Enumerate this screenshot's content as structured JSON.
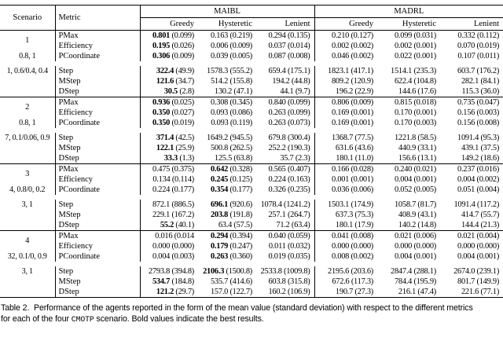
{
  "table": {
    "col_headers": {
      "scenario": "Scenario",
      "metric": "Metric",
      "group1": "MAIBL",
      "group2": "MADRL",
      "subcols": [
        "Greedy",
        "Hysteretic",
        "Lenient"
      ]
    },
    "scenarios": [
      {
        "id": "1",
        "params1": "0.8, 1",
        "params2": "1, 0.6/0.4, 0.4",
        "rows": [
          {
            "metric": "PMax",
            "cells": [
              [
                "0.801",
                "(0.099)",
                1
              ],
              [
                "0.163",
                "(0.219)",
                0
              ],
              [
                "0.294",
                "(0.135)",
                0
              ],
              [
                "0.210",
                "(0.127)",
                0
              ],
              [
                "0.099",
                "(0.031)",
                0
              ],
              [
                "0.332",
                "(0.112)",
                0
              ]
            ]
          },
          {
            "metric": "Efficiency",
            "cells": [
              [
                "0.195",
                "(0.026)",
                1
              ],
              [
                "0.006",
                "(0.009)",
                0
              ],
              [
                "0.037",
                "(0.014)",
                0
              ],
              [
                "0.002",
                "(0.002)",
                0
              ],
              [
                "0.002",
                "(0.001)",
                0
              ],
              [
                "0.070",
                "(0.019)",
                0
              ]
            ]
          },
          {
            "metric": "PCoordinate",
            "cells": [
              [
                "0.306",
                "(0.009)",
                1
              ],
              [
                "0.039",
                "(0.005)",
                0
              ],
              [
                "0.087",
                "(0.008)",
                0
              ],
              [
                "0.046",
                "(0.002)",
                0
              ],
              [
                "0.022",
                "(0.001)",
                0
              ],
              [
                "0.107",
                "(0.011)",
                0
              ]
            ]
          },
          {
            "metric": "Step",
            "cells": [
              [
                "322.4",
                "(49.9)",
                1
              ],
              [
                "1578.3",
                "(555.2)",
                0
              ],
              [
                "659.4",
                "(175.1)",
                0
              ],
              [
                "1823.1",
                "(417.1)",
                0
              ],
              [
                "1514.1",
                "(235.3)",
                0
              ],
              [
                "603.7",
                "(176.2)",
                0
              ]
            ]
          },
          {
            "metric": "MStep",
            "cells": [
              [
                "121.6",
                "(34.7)",
                1
              ],
              [
                "514.2",
                "(155.8)",
                0
              ],
              [
                "194.2",
                "(44.8)",
                0
              ],
              [
                "809.2",
                "(120.9)",
                0
              ],
              [
                "622.4",
                "(104.8)",
                0
              ],
              [
                "282.1",
                "(84.1)",
                0
              ]
            ]
          },
          {
            "metric": "DStep",
            "cells": [
              [
                "30.5",
                "(2.8)",
                1
              ],
              [
                "130.2",
                "(47.1)",
                0
              ],
              [
                "44.1",
                "(9.7)",
                0
              ],
              [
                "196.2",
                "(22.9)",
                0
              ],
              [
                "144.6",
                "(17.6)",
                0
              ],
              [
                "115.3",
                "(36.0)",
                0
              ]
            ]
          }
        ]
      },
      {
        "id": "2",
        "params1": "0.8, 1",
        "params2": "7, 0.1/0.06, 0.9",
        "rows": [
          {
            "metric": "PMax",
            "cells": [
              [
                "0.936",
                "(0.025)",
                1
              ],
              [
                "0.308",
                "(0.345)",
                0
              ],
              [
                "0.840",
                "(0.099)",
                0
              ],
              [
                "0.806",
                "(0.009)",
                0
              ],
              [
                "0.815",
                "(0.018)",
                0
              ],
              [
                "0.735",
                "(0.047)",
                0
              ]
            ]
          },
          {
            "metric": "Efficiency",
            "cells": [
              [
                "0.350",
                "(0.027)",
                1
              ],
              [
                "0.093",
                "(0.086)",
                0
              ],
              [
                "0.263",
                "(0.099)",
                0
              ],
              [
                "0.169",
                "(0.001)",
                0
              ],
              [
                "0.170",
                "(0.001)",
                0
              ],
              [
                "0.156",
                "(0.003)",
                0
              ]
            ]
          },
          {
            "metric": "PCoordinate",
            "cells": [
              [
                "0.350",
                "(0.019)",
                1
              ],
              [
                "0.093",
                "(0.119)",
                0
              ],
              [
                "0.263",
                "(0.073)",
                0
              ],
              [
                "0.169",
                "(0.001)",
                0
              ],
              [
                "0.170",
                "(0.003)",
                0
              ],
              [
                "0.156",
                "(0.008)",
                0
              ]
            ]
          },
          {
            "metric": "Step",
            "cells": [
              [
                "371.4",
                "(42.5)",
                1
              ],
              [
                "1649.2",
                "(945.5)",
                0
              ],
              [
                "679.8",
                "(300.4)",
                0
              ],
              [
                "1368.7",
                "(77.5)",
                0
              ],
              [
                "1221.8",
                "(58.5)",
                0
              ],
              [
                "1091.4",
                "(95.3)",
                0
              ]
            ]
          },
          {
            "metric": "MStep",
            "cells": [
              [
                "122.1",
                "(25.9)",
                1
              ],
              [
                "500.8",
                "(262.5)",
                0
              ],
              [
                "252.2",
                "(190.3)",
                0
              ],
              [
                "631.6",
                "(43.6)",
                0
              ],
              [
                "440.9",
                "(33.1)",
                0
              ],
              [
                "439.1",
                "(37.5)",
                0
              ]
            ]
          },
          {
            "metric": "DStep",
            "cells": [
              [
                "33.3",
                "(1.3)",
                1
              ],
              [
                "125.5",
                "(63.8)",
                0
              ],
              [
                "35.7",
                "(2.3)",
                0
              ],
              [
                "180.1",
                "(11.0)",
                0
              ],
              [
                "156.6",
                "(13.1)",
                0
              ],
              [
                "149.2",
                "(18.6)",
                0
              ]
            ]
          }
        ]
      },
      {
        "id": "3",
        "params1": "4, 0.8/0, 0.2",
        "params2": "3, 1",
        "rows": [
          {
            "metric": "PMax",
            "cells": [
              [
                "0.475",
                "(0.375)",
                0
              ],
              [
                "0.642",
                "(0.328)",
                1
              ],
              [
                "0.565",
                "(0.407)",
                0
              ],
              [
                "0.166",
                "(0.028)",
                0
              ],
              [
                "0.240",
                "(0.021)",
                0
              ],
              [
                "0.237",
                "(0.016)",
                0
              ]
            ]
          },
          {
            "metric": "Efficiency",
            "cells": [
              [
                "0.134",
                "(0.114)",
                0
              ],
              [
                "0.245",
                "(0.125)",
                1
              ],
              [
                "0.224",
                "(0.163)",
                0
              ],
              [
                "0.001",
                "(0.001)",
                0
              ],
              [
                "0.004",
                "(0.001)",
                0
              ],
              [
                "0.004",
                "(0.002)",
                0
              ]
            ]
          },
          {
            "metric": "PCoordinate",
            "cells": [
              [
                "0.224",
                "(0.177)",
                0
              ],
              [
                "0.354",
                "(0.177)",
                1
              ],
              [
                "0.326",
                "(0.235)",
                0
              ],
              [
                "0.036",
                "(0.006)",
                0
              ],
              [
                "0.052",
                "(0.005)",
                0
              ],
              [
                "0.051",
                "(0.004)",
                0
              ]
            ]
          },
          {
            "metric": "Step",
            "cells": [
              [
                "872.1",
                "(886.5)",
                0
              ],
              [
                "696.1",
                "(920.6)",
                1
              ],
              [
                "1078.4",
                "(1241.2)",
                0
              ],
              [
                "1503.1",
                "(174.9)",
                0
              ],
              [
                "1058.7",
                "(81.7)",
                0
              ],
              [
                "1091.4",
                "(117.2)",
                0
              ]
            ]
          },
          {
            "metric": "MStep",
            "cells": [
              [
                "229.1",
                "(167.2)",
                0
              ],
              [
                "203.8",
                "(191.8)",
                1
              ],
              [
                "257.1",
                "(264.7)",
                0
              ],
              [
                "637.3",
                "(75.3)",
                0
              ],
              [
                "408.9",
                "(43.1)",
                0
              ],
              [
                "414.7",
                "(55.7)",
                0
              ]
            ]
          },
          {
            "metric": "DStep",
            "cells": [
              [
                "55.2",
                "(40.1)",
                1
              ],
              [
                "63.4",
                "(57.5)",
                0
              ],
              [
                "71.2",
                "(63.4)",
                0
              ],
              [
                "180.1",
                "(17.9)",
                0
              ],
              [
                "140.2",
                "(14.8)",
                0
              ],
              [
                "144.4",
                "(21.3)",
                0
              ]
            ]
          }
        ]
      },
      {
        "id": "4",
        "params1": "32, 0.1/0, 0.9",
        "params2": "3, 1",
        "rows": [
          {
            "metric": "PMax",
            "cells": [
              [
                "0.016",
                "(0.014",
                0
              ],
              [
                "0.294",
                "(0.394)",
                1
              ],
              [
                "0.040",
                "(0.059)",
                0
              ],
              [
                "0.041",
                "(0.008)",
                0
              ],
              [
                "0.021",
                "(0.006)",
                0
              ],
              [
                "0.021",
                "(0.004)",
                0
              ]
            ]
          },
          {
            "metric": "Efficiency",
            "cells": [
              [
                "0.000",
                "(0.000)",
                0
              ],
              [
                "0.179",
                "(0.247)",
                1
              ],
              [
                "0.011",
                "(0.032)",
                0
              ],
              [
                "0.000",
                "(0.000)",
                0
              ],
              [
                "0.000",
                "(0.000)",
                0
              ],
              [
                "0.000",
                "(0.000)",
                0
              ]
            ]
          },
          {
            "metric": "PCoordinate",
            "cells": [
              [
                "0.004",
                "(0.003)",
                0
              ],
              [
                "0.263",
                "(0.360)",
                1
              ],
              [
                "0.019",
                "(0.035)",
                0
              ],
              [
                "0.008",
                "(0.002)",
                0
              ],
              [
                "0.004",
                "(0.001)",
                0
              ],
              [
                "0.004",
                "(0.001)",
                0
              ]
            ]
          },
          {
            "metric": "Step",
            "cells": [
              [
                "2793.8",
                "(394.8)",
                0
              ],
              [
                "2106.3",
                "(1500.8)",
                1
              ],
              [
                "2533.8",
                "(1009.8)",
                0
              ],
              [
                "2195.6",
                "(203.6)",
                0
              ],
              [
                "2847.4",
                "(288.1)",
                0
              ],
              [
                "2674.0",
                "(239.1)",
                0
              ]
            ]
          },
          {
            "metric": "MStep",
            "cells": [
              [
                "534.7",
                "(184.8)",
                1
              ],
              [
                "535.7",
                "(414.6)",
                0
              ],
              [
                "603.8",
                "(315.8)",
                0
              ],
              [
                "672.6",
                "(117.3)",
                0
              ],
              [
                "784.4",
                "(195.9)",
                0
              ],
              [
                "801.7",
                "(149.9)",
                0
              ]
            ]
          },
          {
            "metric": "DStep",
            "cells": [
              [
                "121.2",
                "(29.7)",
                1
              ],
              [
                "157.0",
                "(122.7)",
                0
              ],
              [
                "160.2",
                "(106.9)",
                0
              ],
              [
                "190.7",
                "(27.3)",
                0
              ],
              [
                "216.1",
                "(47.4)",
                0
              ],
              [
                "221.6",
                "(77.1)",
                0
              ]
            ]
          }
        ]
      }
    ]
  },
  "caption": {
    "label": "Table 2.",
    "line1_rest": "Performance of the agents reported in the form of the mean value (standard deviation) with respect to the different metrics",
    "line2_pre": "for each of the four ",
    "line2_mono": "CMOTP",
    "line2_post": " scenario. Bold values indicate the best results."
  }
}
